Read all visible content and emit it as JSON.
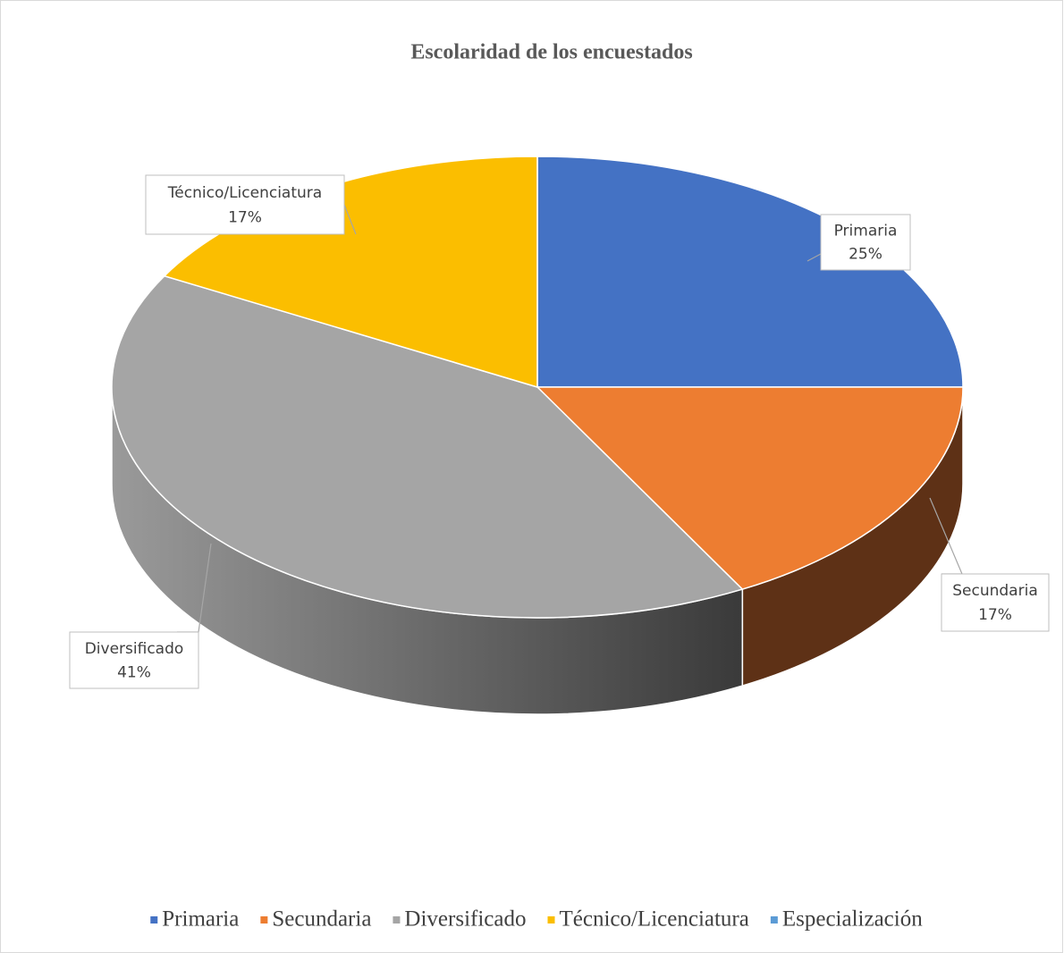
{
  "chart_data": {
    "type": "pie",
    "title": "Escolaridad de los encuestados",
    "categories": [
      "Primaria",
      "Secundaria",
      "Diversificado",
      "Técnico/Licenciatura",
      "Especialización"
    ],
    "values": [
      25,
      17,
      41,
      17,
      0
    ],
    "value_labels": [
      "25%",
      "17%",
      "41%",
      "17%",
      null
    ],
    "colors": [
      "#4472c4",
      "#ed7d31",
      "#a5a5a5",
      "#fbbe00",
      "#5b9bd5"
    ],
    "legend": "bottom"
  }
}
